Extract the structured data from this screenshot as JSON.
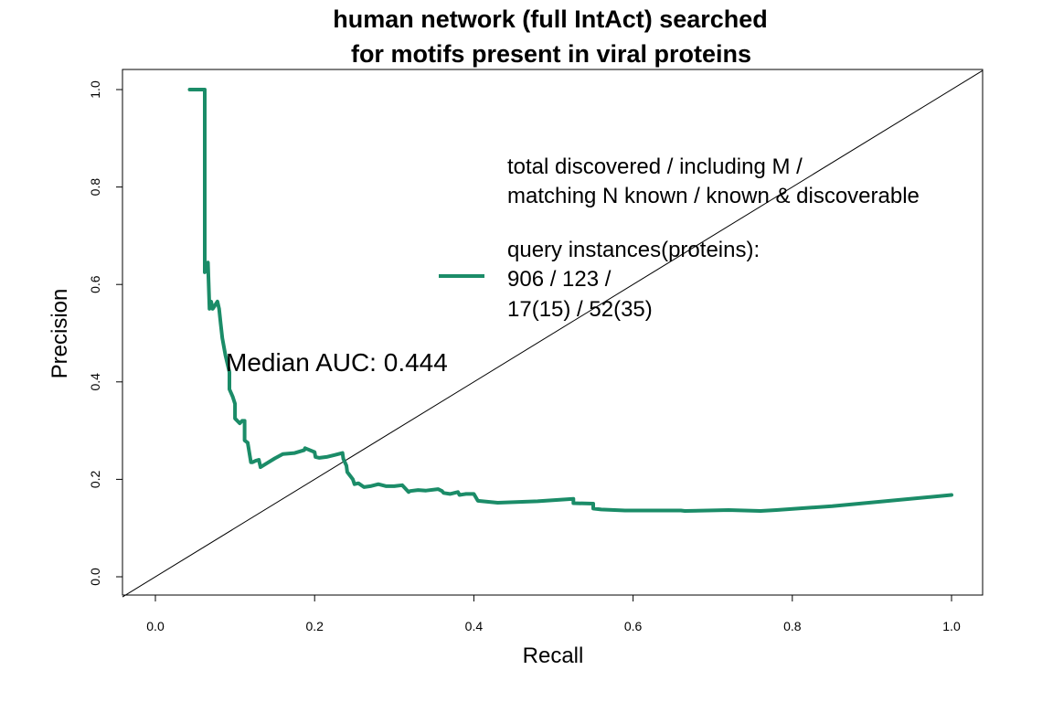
{
  "chart_data": {
    "type": "line",
    "title_lines": [
      "human network (full IntAct) searched",
      "for motifs present in viral proteins"
    ],
    "xlabel": "Recall",
    "ylabel": "Precision",
    "xlim": [
      0.0,
      1.0
    ],
    "ylim": [
      0.0,
      1.0
    ],
    "xticks": [
      "0.0",
      "0.2",
      "0.4",
      "0.6",
      "0.8",
      "1.0"
    ],
    "yticks": [
      "0.0",
      "0.2",
      "0.4",
      "0.6",
      "0.8",
      "1.0"
    ],
    "grid": false,
    "diagonal_reference_line": true,
    "annotation": "Median AUC: 0.444",
    "legend_header_lines": [
      "total discovered / including M /",
      "matching N known / known & discoverable"
    ],
    "legend_entry_lines": [
      "query instances(proteins):",
      "906 / 123 /",
      "17(15) / 52(35)"
    ],
    "legend_position": "upper-center-right",
    "series_color": "#1b8c68",
    "series": [
      {
        "x": [
          0.043,
          0.062,
          0.062,
          0.064,
          0.066,
          0.068,
          0.07,
          0.072,
          0.074,
          0.076,
          0.078,
          0.08,
          0.082,
          0.084,
          0.088,
          0.093,
          0.093,
          0.097,
          0.1,
          0.1,
          0.106,
          0.109,
          0.112,
          0.112,
          0.116,
          0.12,
          0.122,
          0.126,
          0.13,
          0.132,
          0.14,
          0.15,
          0.16,
          0.175,
          0.187,
          0.188,
          0.2,
          0.201,
          0.206,
          0.215,
          0.225,
          0.235,
          0.236,
          0.24,
          0.241,
          0.248,
          0.25,
          0.255,
          0.262,
          0.27,
          0.28,
          0.29,
          0.3,
          0.31,
          0.318,
          0.32,
          0.33,
          0.34,
          0.355,
          0.36,
          0.362,
          0.37,
          0.38,
          0.382,
          0.39,
          0.4,
          0.405,
          0.43,
          0.48,
          0.525,
          0.525,
          0.55,
          0.55,
          0.56,
          0.59,
          0.66,
          0.665,
          0.72,
          0.76,
          0.78,
          0.85,
          1.0
        ],
        "y": [
          1.0,
          1.0,
          0.625,
          0.635,
          0.645,
          0.55,
          0.565,
          0.55,
          0.555,
          0.56,
          0.565,
          0.55,
          0.52,
          0.49,
          0.455,
          0.42,
          0.385,
          0.37,
          0.355,
          0.325,
          0.315,
          0.32,
          0.32,
          0.28,
          0.275,
          0.235,
          0.235,
          0.238,
          0.24,
          0.225,
          0.233,
          0.243,
          0.252,
          0.254,
          0.26,
          0.264,
          0.256,
          0.246,
          0.244,
          0.246,
          0.25,
          0.254,
          0.242,
          0.228,
          0.215,
          0.2,
          0.19,
          0.192,
          0.184,
          0.186,
          0.19,
          0.186,
          0.186,
          0.188,
          0.174,
          0.176,
          0.178,
          0.177,
          0.18,
          0.176,
          0.172,
          0.17,
          0.174,
          0.168,
          0.17,
          0.17,
          0.156,
          0.152,
          0.155,
          0.16,
          0.151,
          0.15,
          0.14,
          0.138,
          0.136,
          0.136,
          0.135,
          0.137,
          0.135,
          0.137,
          0.145,
          0.168
        ]
      }
    ]
  }
}
